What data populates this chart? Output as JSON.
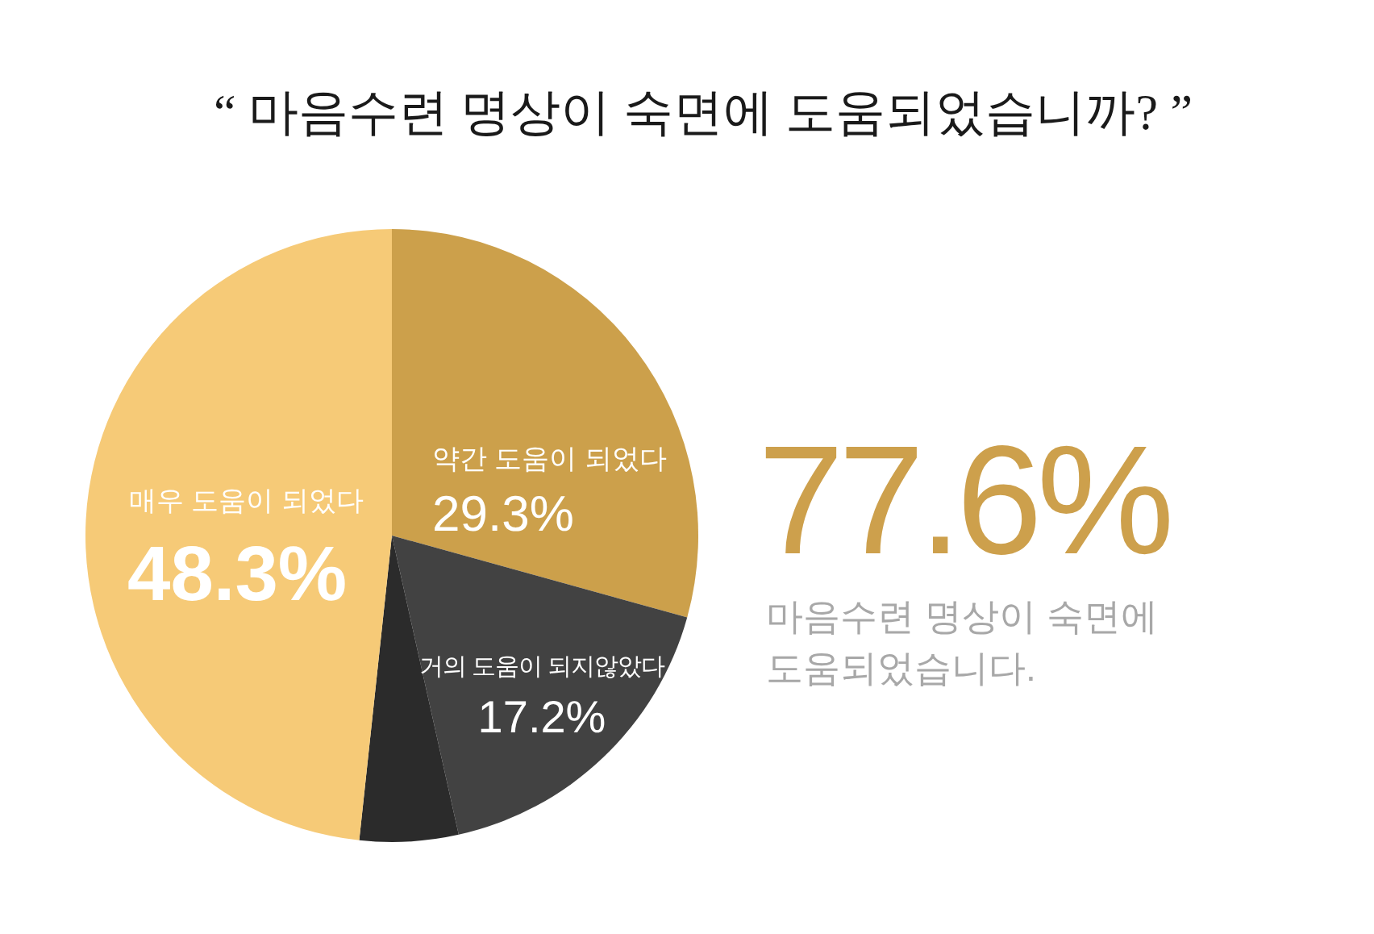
{
  "chart_data": {
    "type": "pie",
    "title": "“ 마음수련 명상이 숙면에 도움되었습니까? ”",
    "categories": [
      "약간 도움이 되었다",
      "거의 도움이 되지않았다",
      null,
      "매우 도움이 되었다"
    ],
    "values": [
      29.3,
      17.2,
      5.2,
      48.3
    ],
    "colors": [
      "#cca04b",
      "#424242",
      "#2b2b2b",
      "#f6ca77"
    ],
    "value_labels": [
      "29.3%",
      "17.2%",
      null,
      "48.3%"
    ],
    "annotations": [
      "77.6%",
      "마음수련 명상이 숙면에 도움되었습니다."
    ]
  }
}
